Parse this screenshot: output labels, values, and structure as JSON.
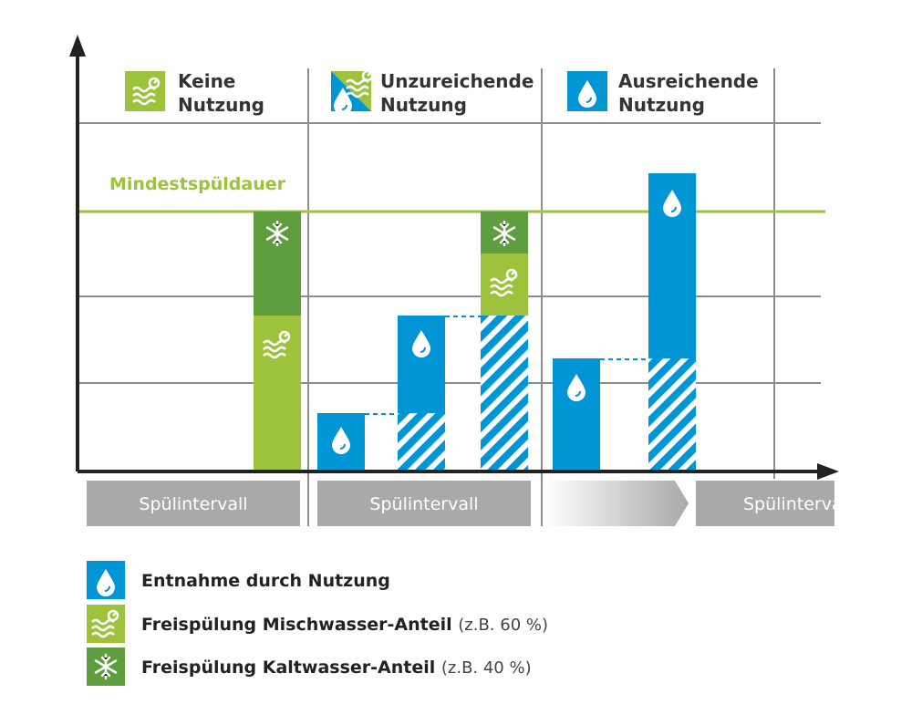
{
  "columns": [
    {
      "title": [
        "Keine",
        "Nutzung"
      ]
    },
    {
      "title": [
        "Unzureichende",
        "Nutzung"
      ]
    },
    {
      "title": [
        "Ausreichende",
        "Nutzung"
      ]
    }
  ],
  "threshold_label": "Mindestspüldauer",
  "intervals": [
    "Spülintervall",
    "Spülintervall",
    "Spülintervall"
  ],
  "legend": [
    {
      "label": "Entnahme durch Nutzung"
    },
    {
      "label": "Freispülung Mischwasser-Anteil",
      "note": "(z.B. 60 %)"
    },
    {
      "label": "Freispülung Kaltwasser-Anteil",
      "note": "(z.B. 40 %)"
    }
  ]
}
